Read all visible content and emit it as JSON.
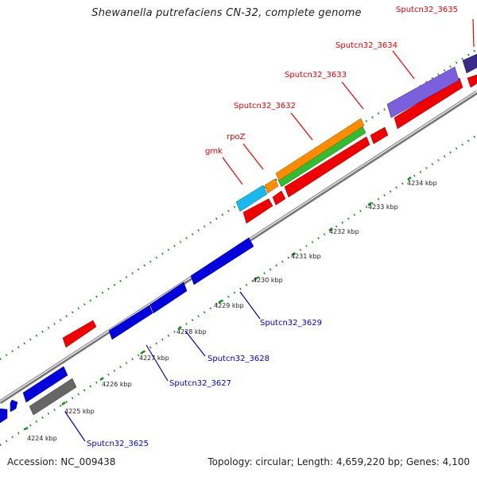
{
  "title": "Shewanella putrefaciens CN-32, complete genome",
  "footer": {
    "accession": "Accession: NC_009438",
    "summary": "Topology: circular; Length: 4,659,220 bp; Genes: 4,100"
  },
  "colors": {
    "forward_label": "#e00000",
    "reverse_label": "#0000cc",
    "axis_grey": "#888888",
    "tick_green": "#1a8a1a"
  },
  "tick_labels": [
    "4224 kbp",
    "4225 kbp",
    "4226 kbp",
    "4227 kbp",
    "4228 kbp",
    "4229 kbp",
    "4230 kbp",
    "4231 kbp",
    "4232 kbp",
    "4233 kbp",
    "4234 kbp"
  ],
  "forward_gene_labels": [
    "Sputcn32_3635",
    "Sputcn32_3634",
    "Sputcn32_3633",
    "Sputcn32_3632",
    "rpoZ",
    "gmk"
  ],
  "reverse_gene_labels": [
    "Sputcn32_3629",
    "Sputcn32_3628",
    "Sputcn32_3627",
    "Sputcn32_3625"
  ]
}
